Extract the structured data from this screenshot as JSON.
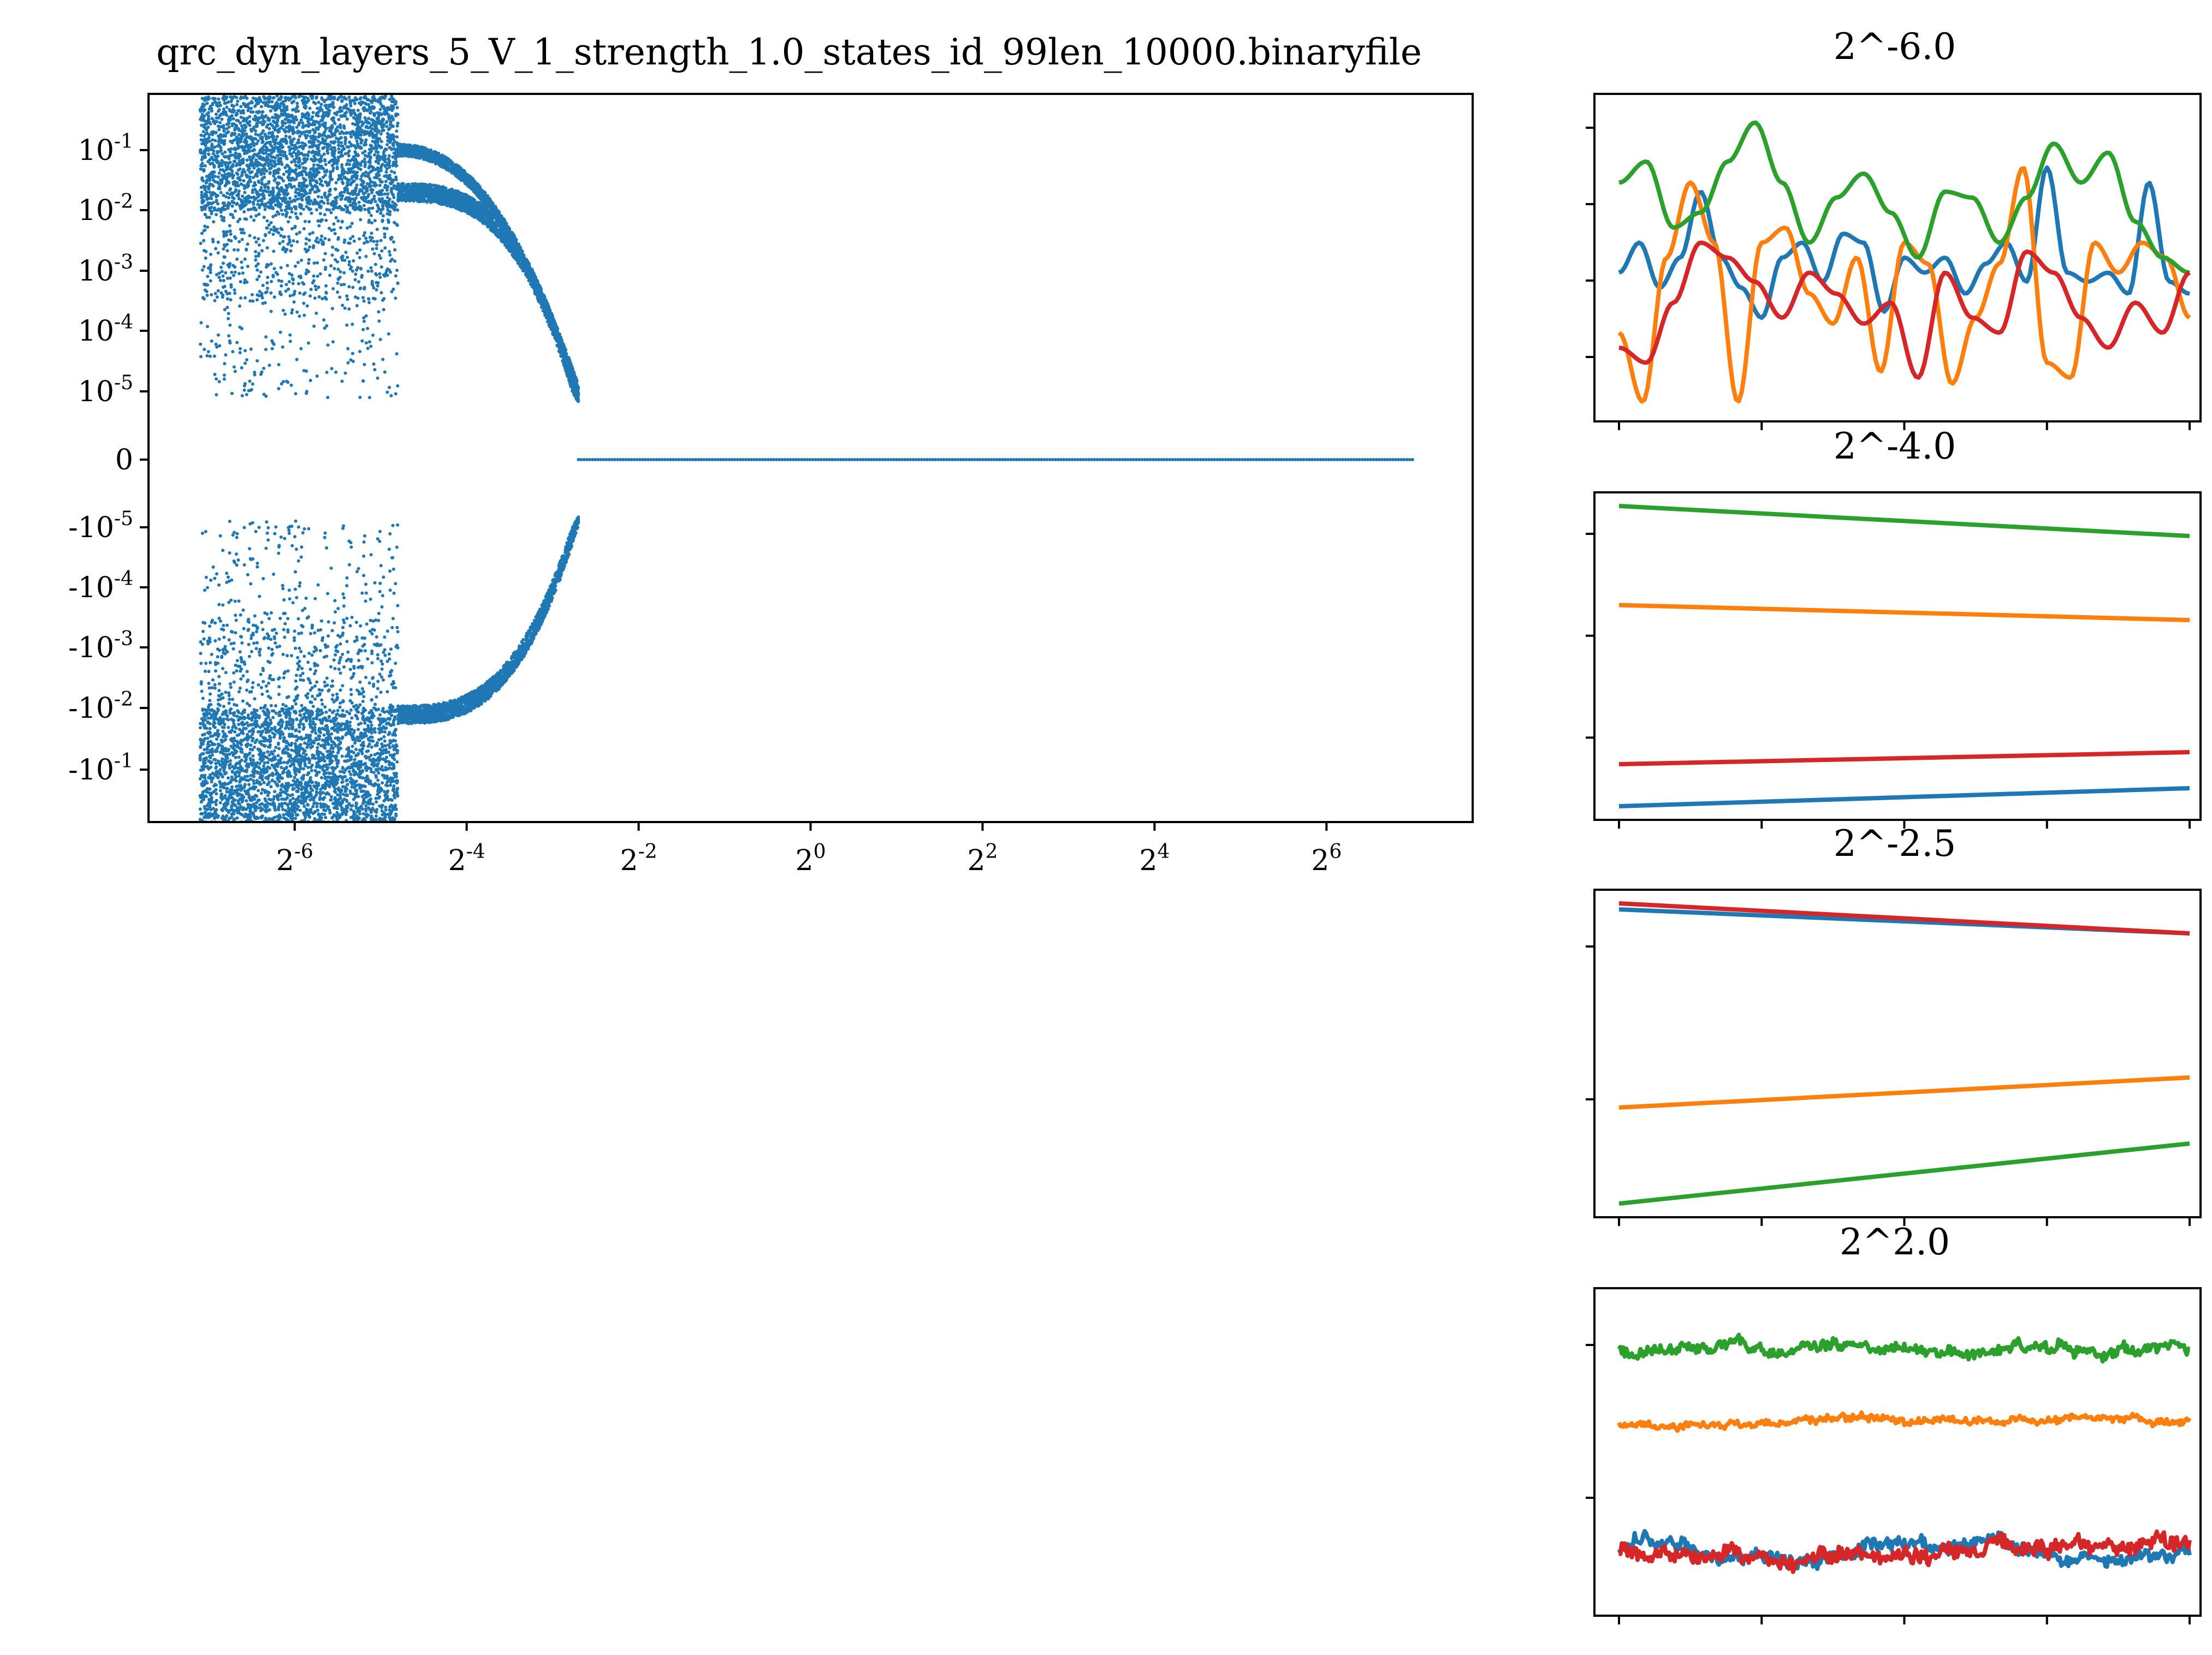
{
  "chart_data": [
    {
      "type": "scatter",
      "title": "qrc_dyn_layers_5_V_1_strength_1.0_states_id_99len_10000.binaryfile",
      "xscale": "log2",
      "yscale": "symlog",
      "xlim_log2": [
        -7.7,
        7.7
      ],
      "color": "#1f77b4",
      "x_ticks": [
        {
          "base": "2",
          "exp": "-6"
        },
        {
          "base": "2",
          "exp": "-4"
        },
        {
          "base": "2",
          "exp": "-2"
        },
        {
          "base": "2",
          "exp": "0"
        },
        {
          "base": "2",
          "exp": "2"
        },
        {
          "base": "2",
          "exp": "4"
        },
        {
          "base": "2",
          "exp": "6"
        }
      ],
      "y_ticks": [
        {
          "base": "10",
          "exp": "-1"
        },
        {
          "base": "10",
          "exp": "-2"
        },
        {
          "base": "10",
          "exp": "-3"
        },
        {
          "base": "10",
          "exp": "-4"
        },
        {
          "base": "10",
          "exp": "-5"
        },
        {
          "base": "",
          "exp": "0"
        },
        {
          "base": "-10",
          "exp": "-5"
        },
        {
          "base": "-10",
          "exp": "-4"
        },
        {
          "base": "-10",
          "exp": "-3"
        },
        {
          "base": "-10",
          "exp": "-2"
        },
        {
          "base": "-10",
          "exp": "-1"
        }
      ],
      "regimes": [
        {
          "x_range_log2": [
            -7.1,
            -4.8
          ],
          "description": "chaotic band, |y| spread 1e-5 to 0.7"
        },
        {
          "x_range_log2": [
            -4.8,
            -2.7
          ],
          "description": "two branches converging toward 0"
        },
        {
          "x_range_log2": [
            -2.7,
            7.0
          ],
          "description": "fixed point y = 0"
        }
      ]
    },
    {
      "type": "line",
      "title": "2^-6.0",
      "series_colors": [
        "#1f77b4",
        "#ff7f0e",
        "#2ca02c",
        "#d62728"
      ],
      "series": [
        {
          "values": [
            0.45,
            0.55,
            0.4,
            0.5,
            0.72,
            0.5,
            0.4,
            0.3,
            0.5,
            0.55,
            0.42,
            0.58,
            0.55,
            0.32,
            0.5,
            0.45,
            0.5,
            0.38,
            0.48,
            0.55,
            0.42,
            0.8,
            0.45,
            0.42,
            0.45,
            0.38,
            0.75,
            0.42,
            0.38
          ]
        },
        {
          "values": [
            0.25,
            0.02,
            0.5,
            0.75,
            0.55,
            0.02,
            0.55,
            0.6,
            0.38,
            0.28,
            0.5,
            0.12,
            0.55,
            0.48,
            0.08,
            0.3,
            0.48,
            0.8,
            0.15,
            0.1,
            0.55,
            0.45,
            0.55,
            0.5,
            0.3
          ]
        },
        {
          "values": [
            0.75,
            0.82,
            0.6,
            0.65,
            0.82,
            0.95,
            0.75,
            0.55,
            0.7,
            0.78,
            0.65,
            0.5,
            0.72,
            0.7,
            0.55,
            0.7,
            0.88,
            0.75,
            0.85,
            0.62,
            0.5,
            0.45
          ]
        },
        {
          "values": [
            0.2,
            0.15,
            0.35,
            0.55,
            0.5,
            0.42,
            0.3,
            0.45,
            0.38,
            0.28,
            0.35,
            0.1,
            0.45,
            0.3,
            0.25,
            0.52,
            0.45,
            0.3,
            0.2,
            0.35,
            0.25,
            0.45
          ]
        }
      ]
    },
    {
      "type": "line",
      "title": "2^-4.0",
      "series_colors": [
        "#1f77b4",
        "#ff7f0e",
        "#2ca02c",
        "#d62728"
      ],
      "series": [
        {
          "start": 0.0,
          "end": 0.06
        },
        {
          "start": 0.67,
          "end": 0.62
        },
        {
          "start": 1.0,
          "end": 0.9
        },
        {
          "start": 0.14,
          "end": 0.18
        }
      ]
    },
    {
      "type": "line",
      "title": "2^-2.5",
      "series_colors": [
        "#1f77b4",
        "#ff7f0e",
        "#2ca02c",
        "#d62728"
      ],
      "series": [
        {
          "start": 0.98,
          "end": 0.9
        },
        {
          "start": 0.32,
          "end": 0.42
        },
        {
          "start": 0.0,
          "end": 0.2
        },
        {
          "start": 1.0,
          "end": 0.9
        }
      ]
    },
    {
      "type": "line",
      "title": "2^2.0",
      "series_colors": [
        "#1f77b4",
        "#ff7f0e",
        "#2ca02c",
        "#d62728"
      ],
      "series": [
        {
          "level": 0.17,
          "noise": 0.06
        },
        {
          "level": 0.6,
          "noise": 0.03
        },
        {
          "level": 0.84,
          "noise": 0.05
        },
        {
          "level": 0.17,
          "noise": 0.07
        }
      ]
    }
  ]
}
